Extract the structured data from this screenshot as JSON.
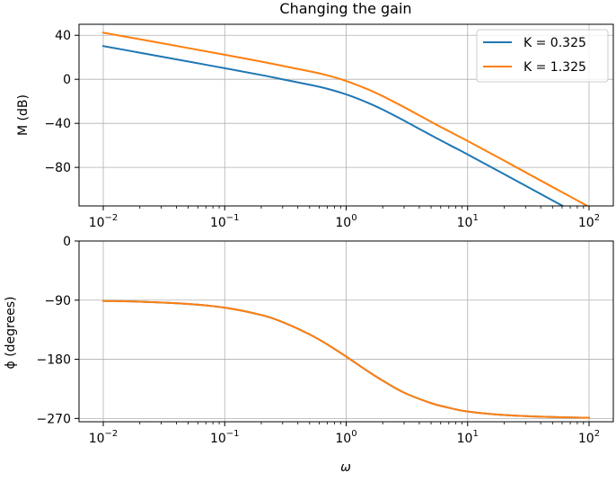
{
  "chart_data": [
    {
      "type": "line",
      "title": "Changing the gain",
      "xlabel": "",
      "ylabel": "M (dB)",
      "xscale": "log",
      "xlim": [
        0.01,
        100
      ],
      "ylim": [
        -115,
        50
      ],
      "yticks": [
        40,
        0,
        -40,
        -80
      ],
      "ytick_labels": [
        "40",
        "0",
        "−40",
        "−80"
      ],
      "xtick_labels": [
        {
          "base": "10",
          "exp": "−2"
        },
        {
          "base": "10",
          "exp": "−1"
        },
        {
          "base": "10",
          "exp": "0"
        },
        {
          "base": "10",
          "exp": "1"
        },
        {
          "base": "10",
          "exp": "2"
        }
      ],
      "grid": true,
      "legend_position": "upper right",
      "x": [
        0.01,
        0.02,
        0.05,
        0.1,
        0.2,
        0.3,
        0.5,
        0.7,
        1,
        1.5,
        2,
        3,
        5,
        7,
        10,
        20,
        50,
        100
      ],
      "series": [
        {
          "name": "K = 0.325",
          "color": "#1f77b4",
          "values": [
            30.2,
            24.2,
            16.2,
            10.1,
            3.9,
            0.0,
            -4.9,
            -8.6,
            -13.7,
            -21.2,
            -27.5,
            -37.5,
            -50.8,
            -59.3,
            -68.2,
            -86.1,
            -110.0,
            -128.0
          ]
        },
        {
          "name": "K = 1.325",
          "color": "#ff7f0e",
          "values": [
            42.4,
            36.4,
            28.4,
            22.3,
            16.1,
            12.2,
            7.3,
            3.6,
            -1.5,
            -9.0,
            -15.3,
            -25.3,
            -38.6,
            -47.1,
            -56.0,
            -73.9,
            -97.8,
            -115.8
          ]
        }
      ]
    },
    {
      "type": "line",
      "title": "",
      "xlabel": "ω",
      "ylabel": "ϕ (degrees)",
      "xscale": "log",
      "xlim": [
        0.01,
        100
      ],
      "ylim": [
        -275,
        0
      ],
      "yticks": [
        0,
        -90,
        -180,
        -270
      ],
      "ytick_labels": [
        "0",
        "−90",
        "−180",
        "−270"
      ],
      "xtick_labels": [
        {
          "base": "10",
          "exp": "−2"
        },
        {
          "base": "10",
          "exp": "−1"
        },
        {
          "base": "10",
          "exp": "0"
        },
        {
          "base": "10",
          "exp": "1"
        },
        {
          "base": "10",
          "exp": "2"
        }
      ],
      "grid": true,
      "x": [
        0.01,
        0.02,
        0.05,
        0.1,
        0.2,
        0.3,
        0.5,
        0.7,
        1,
        1.5,
        2,
        3,
        5,
        7,
        10,
        20,
        50,
        100
      ],
      "series": [
        {
          "color": "#1f77b4",
          "values": [
            -91.1,
            -92.3,
            -95.7,
            -101.4,
            -112.6,
            -123.4,
            -142.1,
            -157.3,
            -175.8,
            -197.8,
            -212.4,
            -230.7,
            -246.6,
            -253.7,
            -259.4,
            -264.7,
            -267.9,
            -268.9
          ]
        },
        {
          "color": "#ff7f0e",
          "values": [
            -91.1,
            -92.3,
            -95.7,
            -101.4,
            -112.6,
            -123.4,
            -142.1,
            -157.3,
            -175.8,
            -197.8,
            -212.4,
            -230.7,
            -246.6,
            -253.7,
            -259.4,
            -264.7,
            -267.9,
            -268.9
          ]
        }
      ]
    }
  ]
}
